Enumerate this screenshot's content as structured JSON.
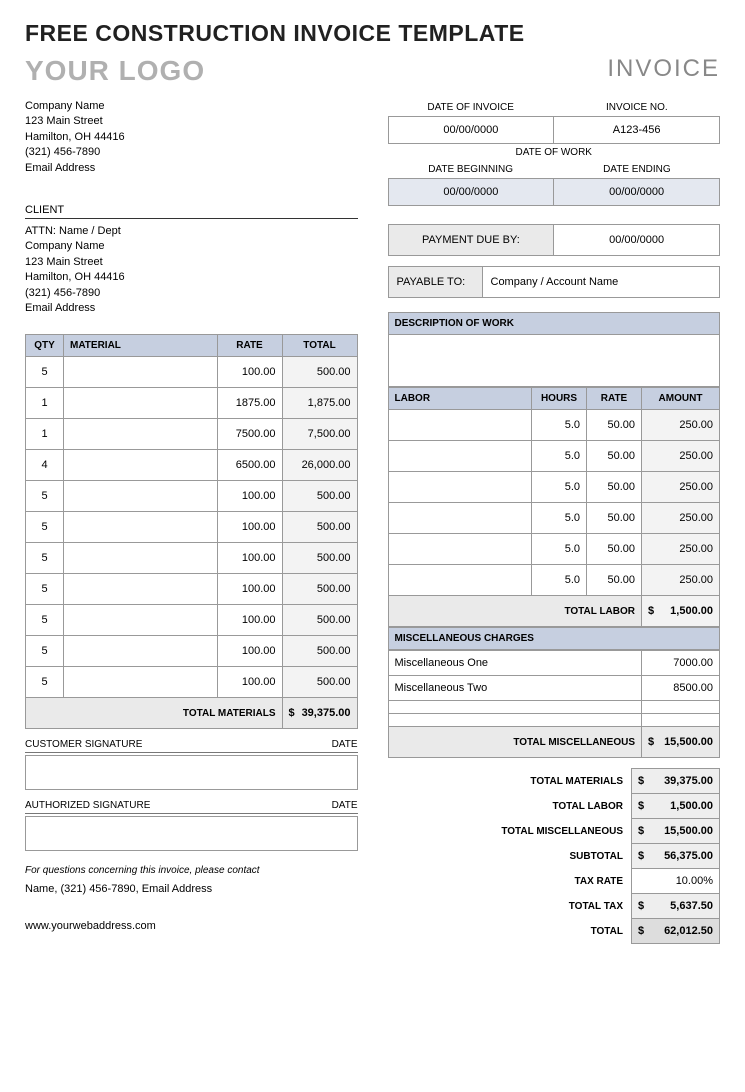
{
  "page_title": "FREE CONSTRUCTION INVOICE TEMPLATE",
  "logo_text": "YOUR LOGO",
  "invoice_label": "INVOICE",
  "company": {
    "name": "Company Name",
    "street": "123 Main Street",
    "city": "Hamilton, OH  44416",
    "phone": "(321) 456-7890",
    "email": "Email Address"
  },
  "client_header": "CLIENT",
  "client": {
    "attn": "ATTN: Name / Dept",
    "name": "Company Name",
    "street": "123 Main Street",
    "city": "Hamilton, OH  44416",
    "phone": "(321) 456-7890",
    "email": "Email Address"
  },
  "meta": {
    "date_of_invoice_label": "DATE OF INVOICE",
    "invoice_no_label": "INVOICE NO.",
    "date_of_invoice": "00/00/0000",
    "invoice_no": "A123-456",
    "date_of_work_label": "DATE OF WORK",
    "date_beginning_label": "DATE BEGINNING",
    "date_ending_label": "DATE ENDING",
    "date_beginning": "00/00/0000",
    "date_ending": "00/00/0000",
    "payment_due_label": "PAYMENT DUE BY:",
    "payment_due": "00/00/0000",
    "payable_to_label": "PAYABLE TO:",
    "payable_to": "Company / Account Name"
  },
  "materials": {
    "headers": {
      "qty": "QTY",
      "material": "MATERIAL",
      "rate": "RATE",
      "total": "TOTAL"
    },
    "rows": [
      {
        "qty": "5",
        "material": "",
        "rate": "100.00",
        "total": "500.00"
      },
      {
        "qty": "1",
        "material": "",
        "rate": "1875.00",
        "total": "1,875.00"
      },
      {
        "qty": "1",
        "material": "",
        "rate": "7500.00",
        "total": "7,500.00"
      },
      {
        "qty": "4",
        "material": "",
        "rate": "6500.00",
        "total": "26,000.00"
      },
      {
        "qty": "5",
        "material": "",
        "rate": "100.00",
        "total": "500.00"
      },
      {
        "qty": "5",
        "material": "",
        "rate": "100.00",
        "total": "500.00"
      },
      {
        "qty": "5",
        "material": "",
        "rate": "100.00",
        "total": "500.00"
      },
      {
        "qty": "5",
        "material": "",
        "rate": "100.00",
        "total": "500.00"
      },
      {
        "qty": "5",
        "material": "",
        "rate": "100.00",
        "total": "500.00"
      },
      {
        "qty": "5",
        "material": "",
        "rate": "100.00",
        "total": "500.00"
      },
      {
        "qty": "5",
        "material": "",
        "rate": "100.00",
        "total": "500.00"
      }
    ],
    "total_label": "TOTAL MATERIALS",
    "total_value": "39,375.00"
  },
  "desc_label": "DESCRIPTION OF WORK",
  "labor": {
    "headers": {
      "labor": "LABOR",
      "hours": "HOURS",
      "rate": "RATE",
      "amount": "AMOUNT"
    },
    "rows": [
      {
        "labor": "",
        "hours": "5.0",
        "rate": "50.00",
        "amount": "250.00"
      },
      {
        "labor": "",
        "hours": "5.0",
        "rate": "50.00",
        "amount": "250.00"
      },
      {
        "labor": "",
        "hours": "5.0",
        "rate": "50.00",
        "amount": "250.00"
      },
      {
        "labor": "",
        "hours": "5.0",
        "rate": "50.00",
        "amount": "250.00"
      },
      {
        "labor": "",
        "hours": "5.0",
        "rate": "50.00",
        "amount": "250.00"
      },
      {
        "labor": "",
        "hours": "5.0",
        "rate": "50.00",
        "amount": "250.00"
      }
    ],
    "total_label": "TOTAL LABOR",
    "total_value": "1,500.00"
  },
  "misc": {
    "header": "MISCELLANEOUS CHARGES",
    "rows": [
      {
        "name": "Miscellaneous One",
        "value": "7000.00"
      },
      {
        "name": "Miscellaneous Two",
        "value": "8500.00"
      },
      {
        "name": "",
        "value": ""
      },
      {
        "name": "",
        "value": ""
      }
    ],
    "total_label": "TOTAL MISCELLANEOUS",
    "total_value": "15,500.00"
  },
  "signatures": {
    "customer": "CUSTOMER SIGNATURE",
    "authorized": "AUTHORIZED SIGNATURE",
    "date": "DATE"
  },
  "contact": {
    "note": "For questions concerning this invoice, please contact",
    "line": "Name, (321) 456-7890, Email Address",
    "web": "www.yourwebaddress.com"
  },
  "summary": {
    "total_materials_label": "TOTAL MATERIALS",
    "total_materials": "39,375.00",
    "total_labor_label": "TOTAL LABOR",
    "total_labor": "1,500.00",
    "total_misc_label": "TOTAL MISCELLANEOUS",
    "total_misc": "15,500.00",
    "subtotal_label": "SUBTOTAL",
    "subtotal": "56,375.00",
    "tax_rate_label": "TAX RATE",
    "tax_rate": "10.00%",
    "total_tax_label": "TOTAL TAX",
    "total_tax": "5,637.50",
    "total_label": "TOTAL",
    "total": "62,012.50"
  }
}
